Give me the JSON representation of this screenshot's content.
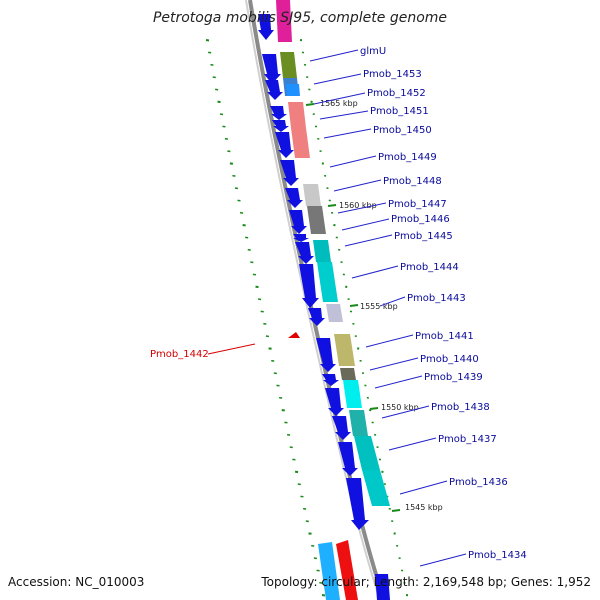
{
  "title": "Petrotoga mobilis SJ95, complete genome",
  "footer": {
    "accession": "Accession: NC_010003",
    "topology": "Topology: circular; Length: 2,169,548 bp; Genes: 1,952"
  },
  "colors": {
    "forward_gene": "#1010e0",
    "label_line": "#2222cc",
    "highlight": "#e00000",
    "tick": "#1a8a1a",
    "backbone": "#8a8a8a"
  },
  "ruler": [
    {
      "label": "1565 kbp"
    },
    {
      "label": "1560 kbp"
    },
    {
      "label": "1555 kbp"
    },
    {
      "label": "1550 kbp"
    },
    {
      "label": "1545 kbp"
    }
  ],
  "genes": [
    {
      "label": "glmU",
      "color": "#6b8e23"
    },
    {
      "label": "Pmob_1453",
      "color": "#3a7fd0"
    },
    {
      "label": "Pmob_1452",
      "color": "#1e90ff"
    },
    {
      "label": "Pmob_1451",
      "color": "#f08080"
    },
    {
      "label": "Pmob_1450",
      "color": "#f08080"
    },
    {
      "label": "Pmob_1449",
      "color": "#ffffff"
    },
    {
      "label": "Pmob_1448",
      "color": "#c8c8c8"
    },
    {
      "label": "Pmob_1447",
      "color": "#777777"
    },
    {
      "label": "Pmob_1446",
      "color": "#777777"
    },
    {
      "label": "Pmob_1445",
      "color": "#00bcbc"
    },
    {
      "label": "Pmob_1444",
      "color": "#00cdcd"
    },
    {
      "label": "Pmob_1443",
      "color": "#c0c0d8"
    },
    {
      "label": "Pmob_1441",
      "color": "#bdb76b"
    },
    {
      "label": "Pmob_1440",
      "color": "#6a6a5a"
    },
    {
      "label": "Pmob_1439",
      "color": "#00eeee"
    },
    {
      "label": "Pmob_1438",
      "color": "#20b2aa"
    },
    {
      "label": "Pmob_1437",
      "color": "#00c0c0"
    },
    {
      "label": "Pmob_1436",
      "color": "#00c8c8"
    },
    {
      "label": "Pmob_1434",
      "color": "#ffffff"
    }
  ],
  "highlight_gene": {
    "label": "Pmob_1442"
  }
}
